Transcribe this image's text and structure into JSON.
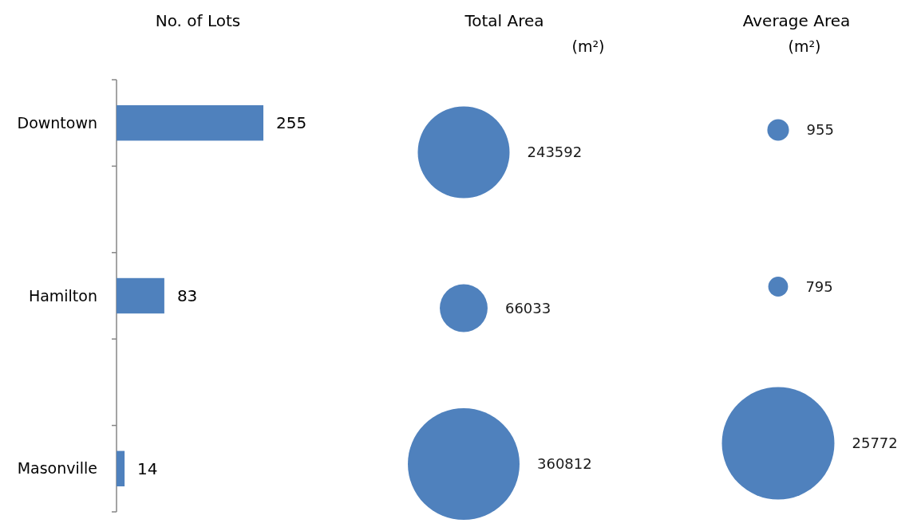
{
  "chart_data": [
    {
      "type": "bar",
      "orientation": "horizontal",
      "title": "No. of Lots",
      "categories": [
        "Downtown",
        null,
        "Hamilton",
        null,
        "Masonville"
      ],
      "values": [
        255,
        null,
        83,
        null,
        14
      ],
      "color": "#4f81bd",
      "data_labels": true,
      "tick_labels": "y"
    },
    {
      "type": "other",
      "title": "Total Area",
      "subtitle": "(m²)",
      "values": [
        243592,
        66033,
        360812
      ],
      "color": "#4f81bd",
      "data_labels": true
    },
    {
      "type": "other",
      "title": "Average Area",
      "subtitle": "(m²)",
      "values": [
        955,
        795,
        25772
      ],
      "color": "#4f81bd",
      "data_labels": true
    }
  ]
}
